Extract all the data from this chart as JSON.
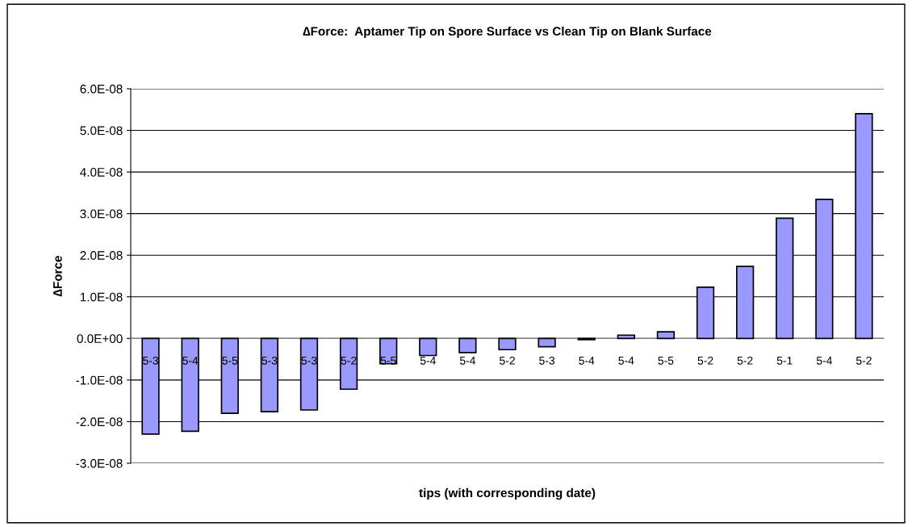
{
  "chart_data": {
    "type": "bar",
    "title": "∆Force:  Aptamer Tip on Spore Surface vs Clean Tip on Blank Surface",
    "xlabel": "tips (with corresponding date)",
    "ylabel": "∆Force",
    "categories": [
      "5-3",
      "5-4",
      "5-5",
      "5-3",
      "5-3",
      "5-2",
      "5-5",
      "5-4",
      "5-4",
      "5-2",
      "5-3",
      "5-4",
      "5-4",
      "5-5",
      "5-2",
      "5-2",
      "5-1",
      "5-4",
      "5-2"
    ],
    "values": [
      -2.3e-08,
      -2.23e-08,
      -1.8e-08,
      -1.76e-08,
      -1.72e-08,
      -1.22e-08,
      -6.1e-09,
      -4.1e-09,
      -3.4e-09,
      -2.7e-09,
      -2e-09,
      -3e-10,
      8e-10,
      1.6e-09,
      1.23e-08,
      1.73e-08,
      2.89e-08,
      3.34e-08,
      5.4e-08
    ],
    "color": "#9999ff",
    "ylim": [
      -3e-08,
      6e-08
    ],
    "yticks": [
      {
        "value": -3e-08,
        "label": "-3.0E-08"
      },
      {
        "value": -2e-08,
        "label": "-2.0E-08"
      },
      {
        "value": -1e-08,
        "label": "-1.0E-08"
      },
      {
        "value": 0,
        "label": "0.0E+00"
      },
      {
        "value": 1e-08,
        "label": "1.0E-08"
      },
      {
        "value": 2e-08,
        "label": "2.0E-08"
      },
      {
        "value": 3e-08,
        "label": "3.0E-08"
      },
      {
        "value": 4e-08,
        "label": "4.0E-08"
      },
      {
        "value": 5e-08,
        "label": "5.0E-08"
      },
      {
        "value": 6e-08,
        "label": "6.0E-08"
      }
    ],
    "grid": "y"
  }
}
